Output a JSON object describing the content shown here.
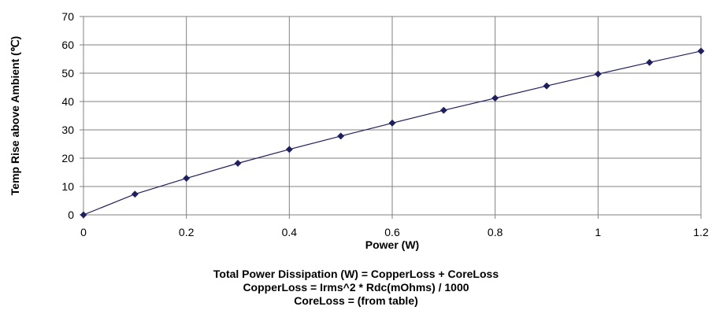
{
  "chart_data": {
    "type": "line",
    "x": [
      0,
      0.1,
      0.2,
      0.3,
      0.4,
      0.5,
      0.6,
      0.7,
      0.8,
      0.9,
      1.0,
      1.1,
      1.2
    ],
    "series": [
      {
        "values": [
          0,
          7.3,
          12.9,
          18.2,
          23.1,
          27.8,
          32.4,
          36.9,
          41.2,
          45.5,
          49.7,
          53.8,
          57.8
        ]
      }
    ],
    "xlabel": "Power (W)",
    "ylabel": "Temp Rise above Ambient (℃)",
    "xlim": [
      0,
      1.2
    ],
    "ylim": [
      0,
      70
    ],
    "xticks": [
      "0",
      "0.2",
      "0.4",
      "0.6",
      "0.8",
      "1",
      "1.2"
    ],
    "yticks": [
      "0",
      "10",
      "20",
      "30",
      "40",
      "50",
      "60",
      "70"
    ],
    "grid": true,
    "legend": "none",
    "line_color": "#1f1f5e",
    "marker": "diamond",
    "notes": [
      "Total Power Dissipation (W) = CopperLoss + CoreLoss",
      "CopperLoss = Irms^2 * Rdc(mOhms) / 1000",
      "CoreLoss = (from table)"
    ]
  }
}
